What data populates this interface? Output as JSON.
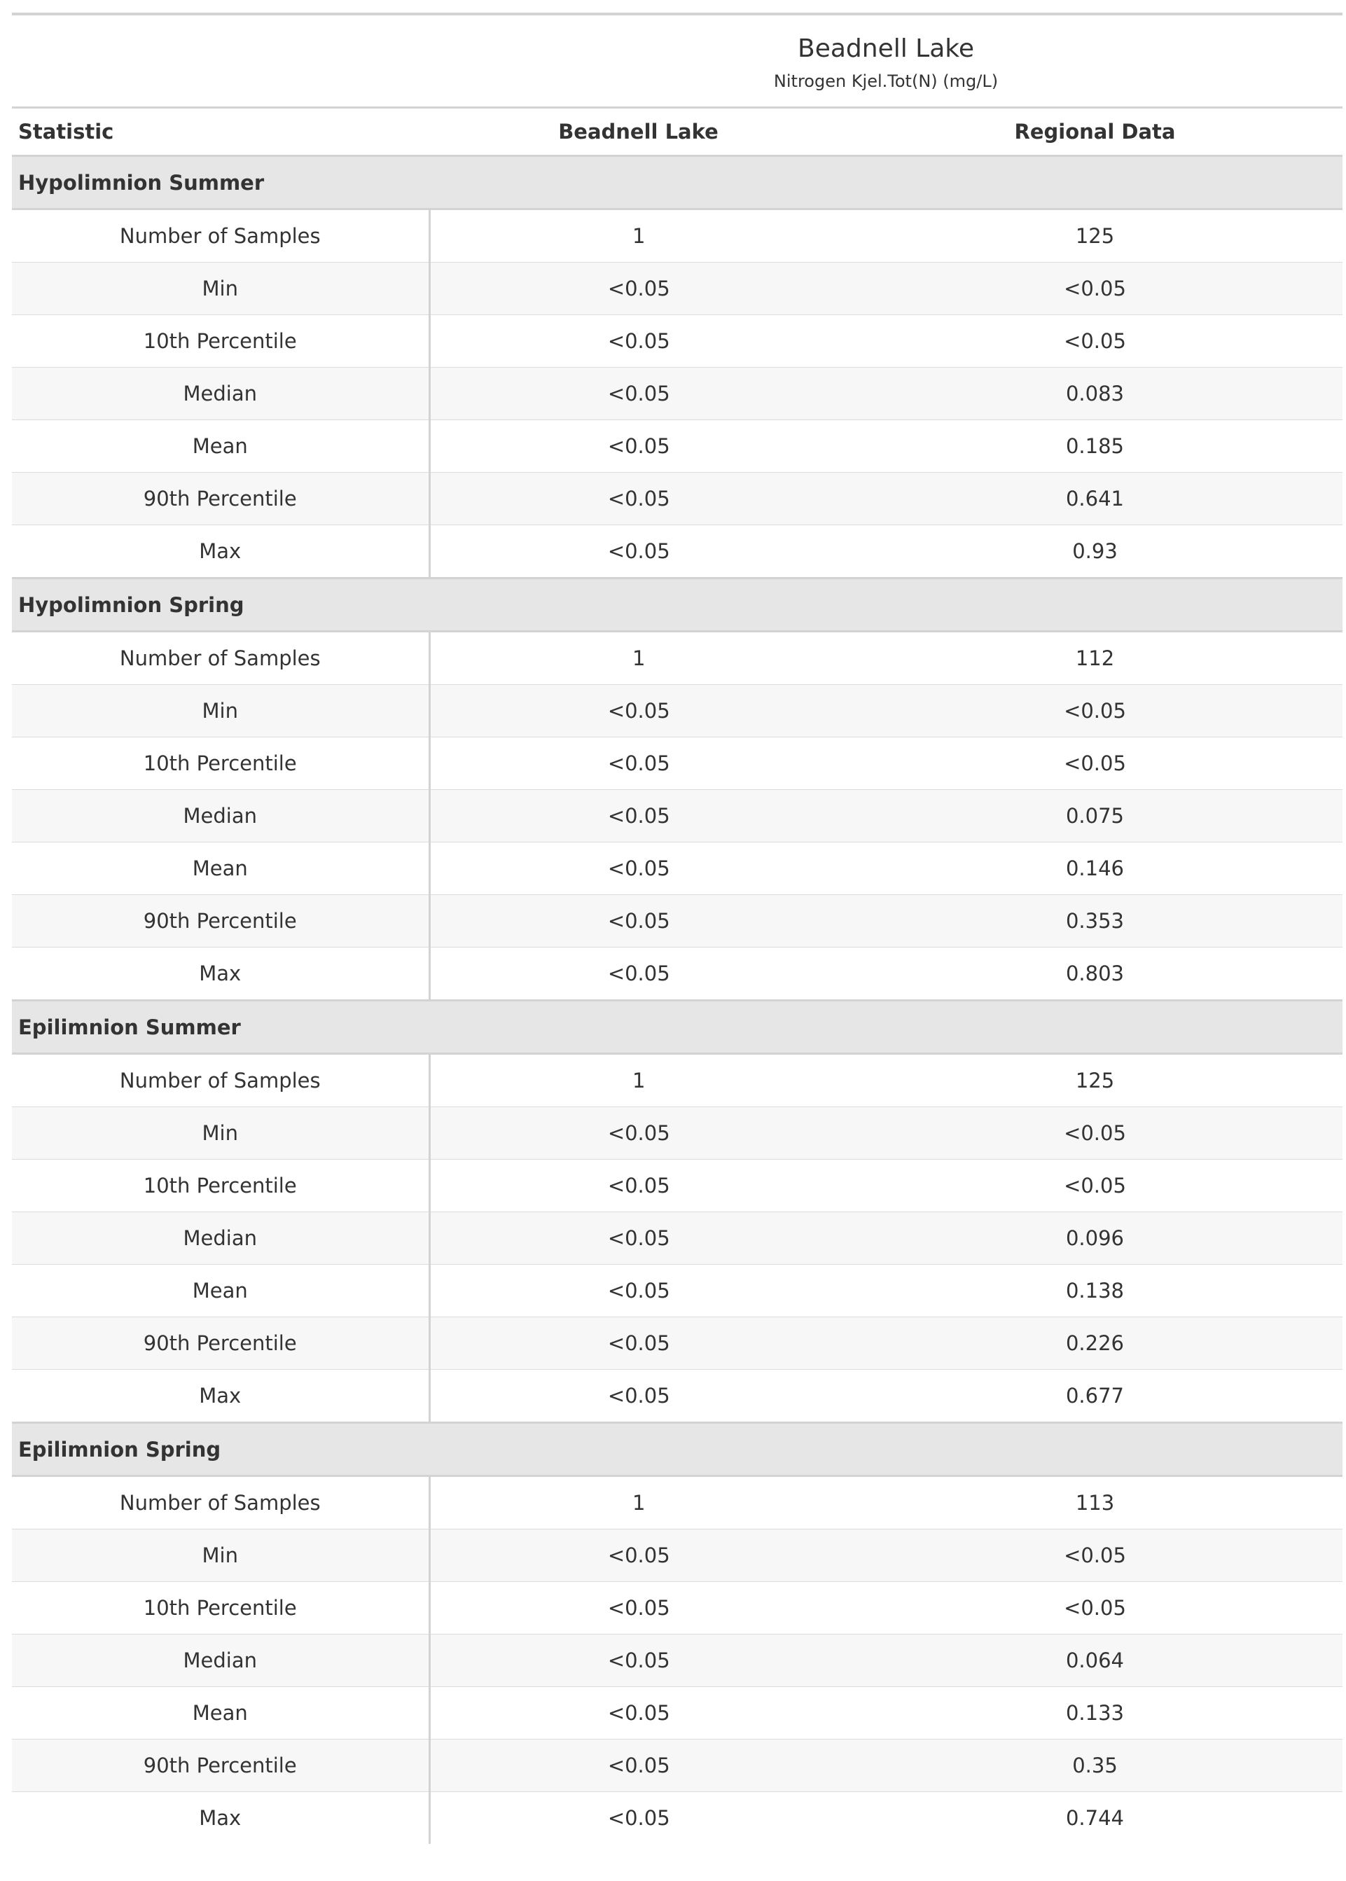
{
  "header": {
    "title": "Beadnell Lake",
    "subtitle": "Nitrogen Kjel.Tot(N) (mg/L)"
  },
  "columns": {
    "statistic": "Statistic",
    "lake": "Beadnell Lake",
    "regional": "Regional Data"
  },
  "groups": [
    {
      "label": "Hypolimnion Summer",
      "rows": [
        {
          "stat": "Number of Samples",
          "lake": "1",
          "regional": "125"
        },
        {
          "stat": "Min",
          "lake": "<0.05",
          "regional": "<0.05"
        },
        {
          "stat": "10th Percentile",
          "lake": "<0.05",
          "regional": "<0.05"
        },
        {
          "stat": "Median",
          "lake": "<0.05",
          "regional": "0.083"
        },
        {
          "stat": "Mean",
          "lake": "<0.05",
          "regional": "0.185"
        },
        {
          "stat": "90th Percentile",
          "lake": "<0.05",
          "regional": "0.641"
        },
        {
          "stat": "Max",
          "lake": "<0.05",
          "regional": "0.93"
        }
      ]
    },
    {
      "label": "Hypolimnion Spring",
      "rows": [
        {
          "stat": "Number of Samples",
          "lake": "1",
          "regional": "112"
        },
        {
          "stat": "Min",
          "lake": "<0.05",
          "regional": "<0.05"
        },
        {
          "stat": "10th Percentile",
          "lake": "<0.05",
          "regional": "<0.05"
        },
        {
          "stat": "Median",
          "lake": "<0.05",
          "regional": "0.075"
        },
        {
          "stat": "Mean",
          "lake": "<0.05",
          "regional": "0.146"
        },
        {
          "stat": "90th Percentile",
          "lake": "<0.05",
          "regional": "0.353"
        },
        {
          "stat": "Max",
          "lake": "<0.05",
          "regional": "0.803"
        }
      ]
    },
    {
      "label": "Epilimnion Summer",
      "rows": [
        {
          "stat": "Number of Samples",
          "lake": "1",
          "regional": "125"
        },
        {
          "stat": "Min",
          "lake": "<0.05",
          "regional": "<0.05"
        },
        {
          "stat": "10th Percentile",
          "lake": "<0.05",
          "regional": "<0.05"
        },
        {
          "stat": "Median",
          "lake": "<0.05",
          "regional": "0.096"
        },
        {
          "stat": "Mean",
          "lake": "<0.05",
          "regional": "0.138"
        },
        {
          "stat": "90th Percentile",
          "lake": "<0.05",
          "regional": "0.226"
        },
        {
          "stat": "Max",
          "lake": "<0.05",
          "regional": "0.677"
        }
      ]
    },
    {
      "label": "Epilimnion Spring",
      "rows": [
        {
          "stat": "Number of Samples",
          "lake": "1",
          "regional": "113"
        },
        {
          "stat": "Min",
          "lake": "<0.05",
          "regional": "<0.05"
        },
        {
          "stat": "10th Percentile",
          "lake": "<0.05",
          "regional": "<0.05"
        },
        {
          "stat": "Median",
          "lake": "<0.05",
          "regional": "0.064"
        },
        {
          "stat": "Mean",
          "lake": "<0.05",
          "regional": "0.133"
        },
        {
          "stat": "90th Percentile",
          "lake": "<0.05",
          "regional": "0.35"
        },
        {
          "stat": "Max",
          "lake": "<0.05",
          "regional": "0.744"
        }
      ]
    }
  ]
}
